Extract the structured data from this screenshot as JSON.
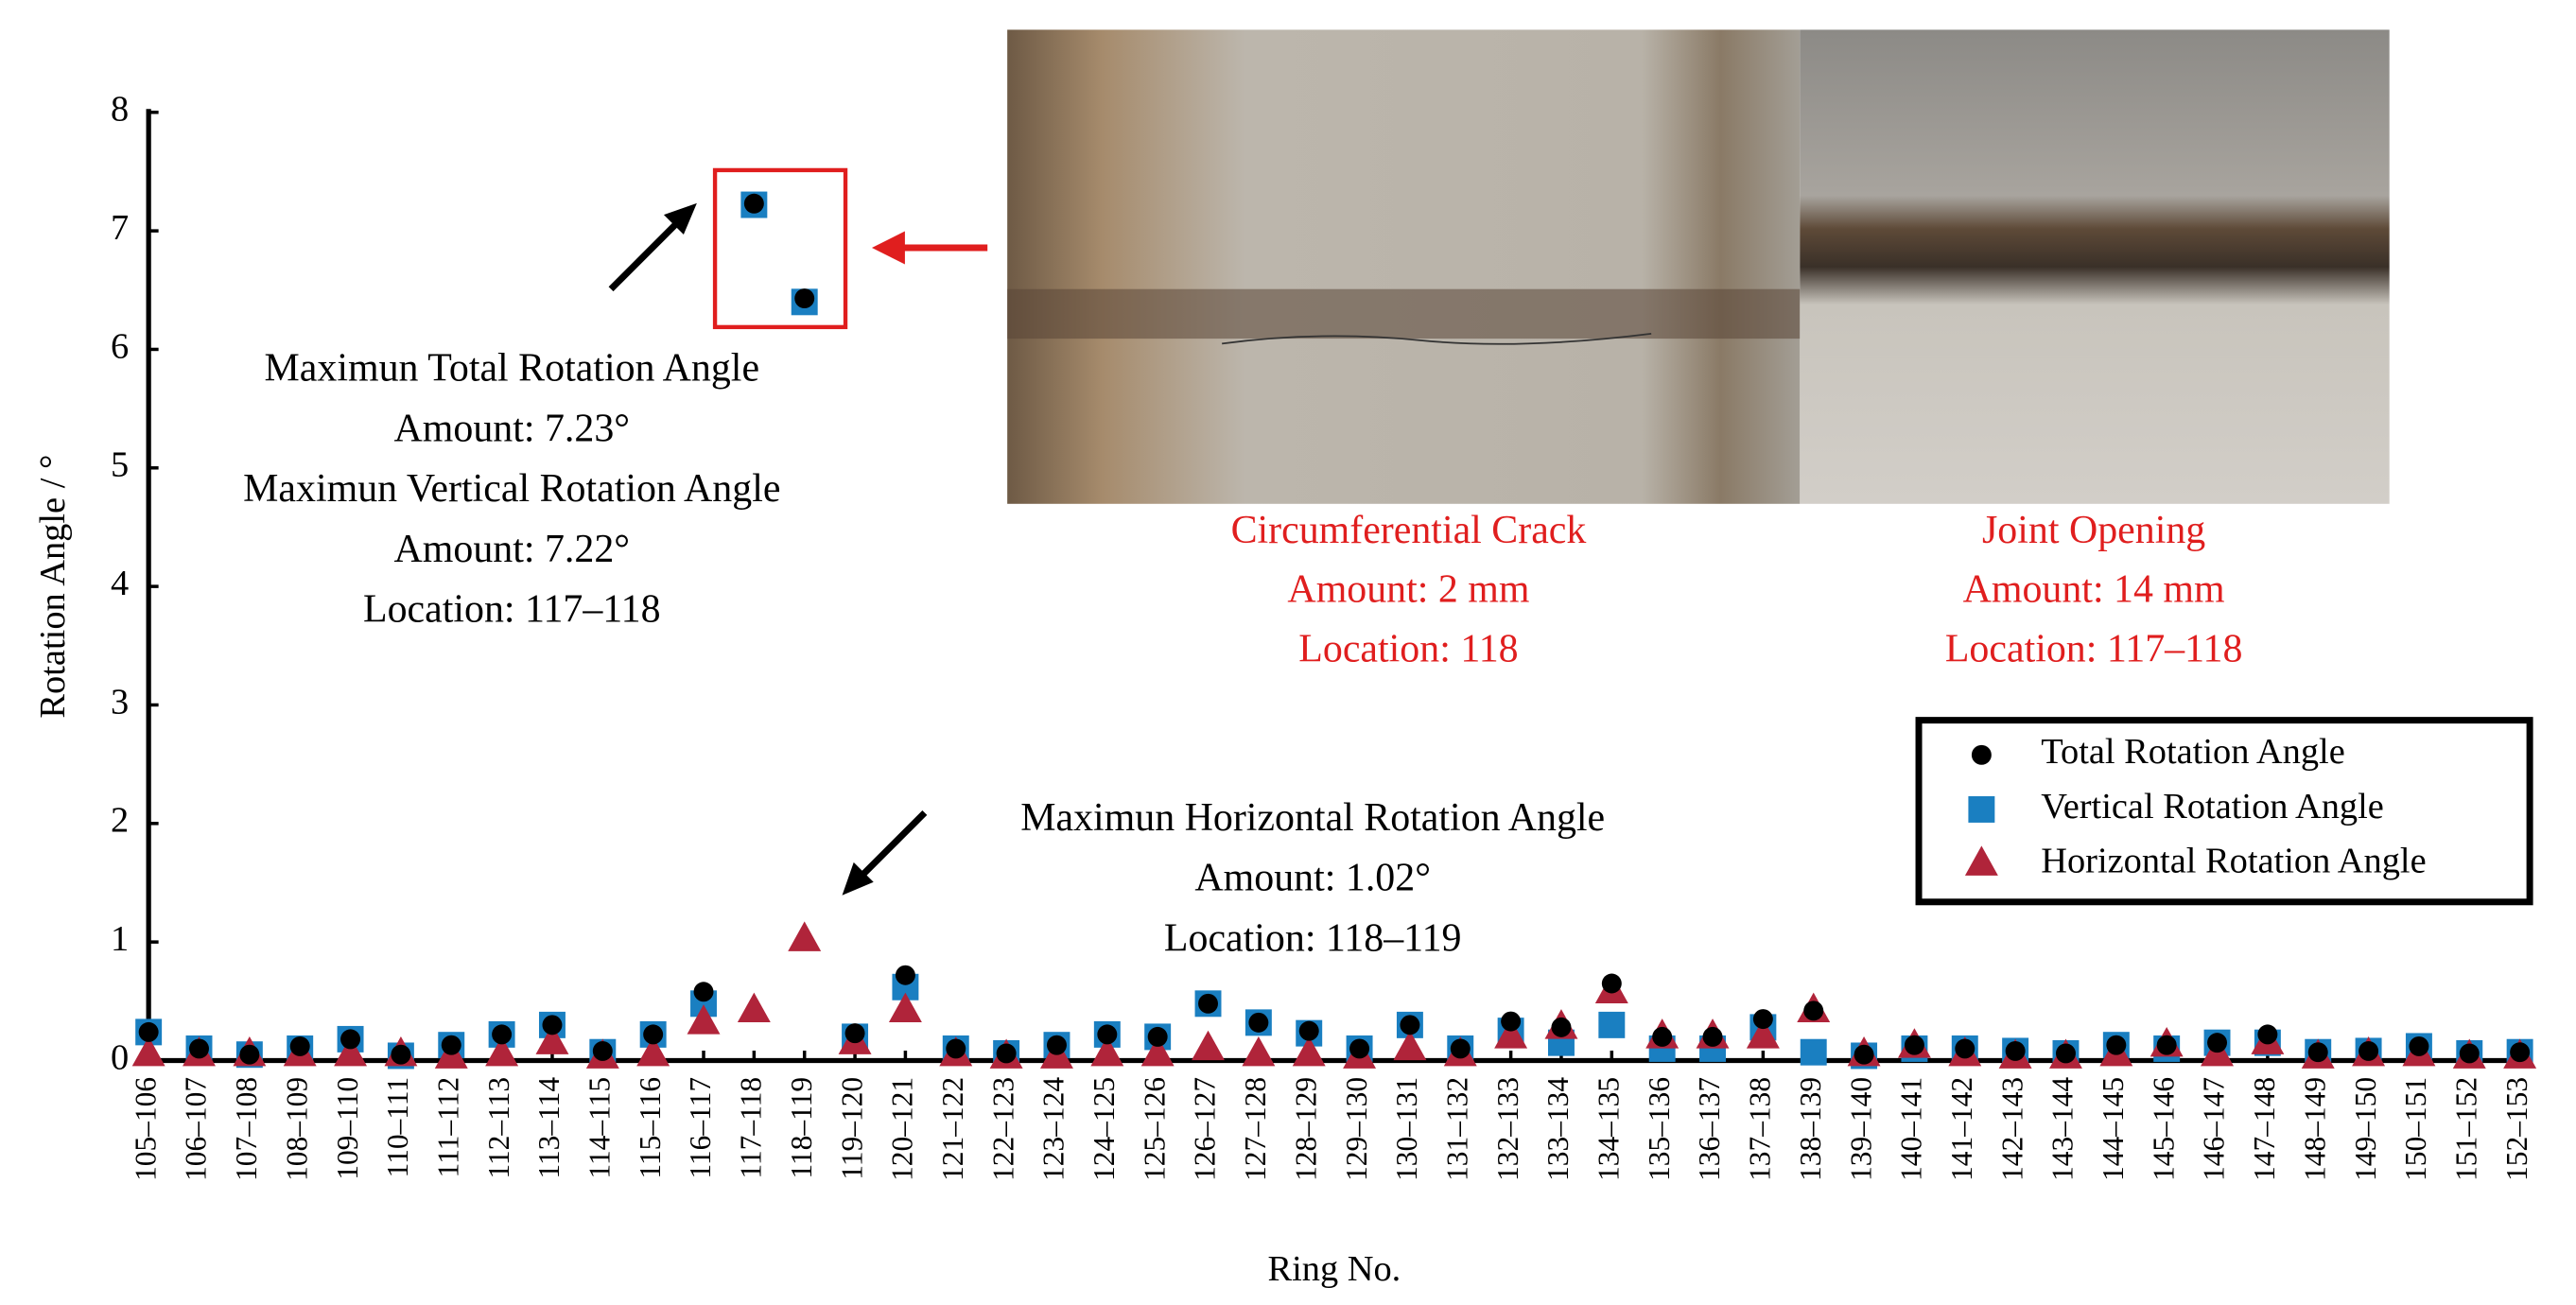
{
  "chart_data": {
    "type": "scatter",
    "y_label": "Rotation Angle / °",
    "x_label": "Ring No.",
    "categories": [
      "105–106",
      "106–107",
      "107–108",
      "108–109",
      "109–110",
      "110–111",
      "111–112",
      "112–113",
      "113–114",
      "114–115",
      "115–116",
      "116–117",
      "117–118",
      "118–119",
      "119–120",
      "120–121",
      "121–122",
      "122–123",
      "123–124",
      "124–125",
      "125–126",
      "126–127",
      "127–128",
      "128–129",
      "129–130",
      "130–131",
      "131–132",
      "132–133",
      "133–134",
      "134–135",
      "135–136",
      "136–137",
      "137–138",
      "138–139",
      "139–140",
      "140–141",
      "141–142",
      "142–143",
      "143–144",
      "144–145",
      "145–146",
      "146–147",
      "147–148",
      "148–149",
      "149–150",
      "150–151",
      "151–152",
      "152–153"
    ],
    "series": [
      {
        "name": "Total Rotation Angle",
        "color": "#000000",
        "marker": "circle",
        "values": [
          0.24,
          0.1,
          0.05,
          0.12,
          0.18,
          0.05,
          0.13,
          0.22,
          0.3,
          0.08,
          0.22,
          0.58,
          7.23,
          6.43,
          0.23,
          0.72,
          0.1,
          0.06,
          0.13,
          0.22,
          0.2,
          0.48,
          0.32,
          0.25,
          0.1,
          0.3,
          0.1,
          0.33,
          0.28,
          0.65,
          0.2,
          0.2,
          0.35,
          0.42,
          0.05,
          0.13,
          0.1,
          0.08,
          0.06,
          0.13,
          0.13,
          0.15,
          0.22,
          0.07,
          0.08,
          0.12,
          0.06,
          0.07
        ]
      },
      {
        "name": "Vertical Rotation Angle",
        "color": "#1a7fc1",
        "marker": "square",
        "values": [
          0.24,
          0.1,
          0.05,
          0.1,
          0.18,
          0.04,
          0.13,
          0.22,
          0.3,
          0.07,
          0.22,
          0.48,
          7.22,
          6.4,
          0.2,
          0.62,
          0.1,
          0.06,
          0.13,
          0.22,
          0.2,
          0.48,
          0.32,
          0.23,
          0.1,
          0.3,
          0.1,
          0.25,
          0.15,
          0.3,
          0.1,
          0.1,
          0.28,
          0.07,
          0.04,
          0.1,
          0.1,
          0.08,
          0.06,
          0.13,
          0.1,
          0.15,
          0.15,
          0.07,
          0.08,
          0.12,
          0.06,
          0.07
        ]
      },
      {
        "name": "Horizontal Rotation Angle",
        "color": "#b0243a",
        "marker": "triangle",
        "values": [
          0.05,
          0.05,
          0.05,
          0.05,
          0.05,
          0.05,
          0.03,
          0.05,
          0.15,
          0.03,
          0.05,
          0.32,
          0.42,
          1.02,
          0.15,
          0.42,
          0.05,
          0.03,
          0.03,
          0.05,
          0.05,
          0.1,
          0.05,
          0.05,
          0.03,
          0.1,
          0.05,
          0.2,
          0.28,
          0.58,
          0.2,
          0.2,
          0.2,
          0.42,
          0.05,
          0.12,
          0.05,
          0.03,
          0.03,
          0.05,
          0.13,
          0.05,
          0.15,
          0.03,
          0.05,
          0.05,
          0.03,
          0.03
        ]
      }
    ],
    "ylim": [
      0,
      8
    ],
    "yticks": [
      0,
      1,
      2,
      3,
      4,
      5,
      6,
      7,
      8
    ],
    "legend": "lower-right",
    "annotations": [
      {
        "lines": [
          "Maximun Total Rotation Angle",
          "Amount: 7.23°",
          "Maximun Vertical Rotation Angle",
          "Amount: 7.22°",
          "Location: 117–118"
        ],
        "color": "#000000"
      },
      {
        "lines": [
          "Maximun Horizontal Rotation Angle",
          "Amount: 1.02°",
          "Location: 118–119"
        ],
        "color": "#000000"
      },
      {
        "lines": [
          "Circumferential Crack",
          "Amount: 2 mm",
          "Location: 118"
        ],
        "color": "#e01e1e"
      },
      {
        "lines": [
          "Joint Opening",
          "Amount: 14 mm",
          "Location: 117–118"
        ],
        "color": "#e01e1e"
      }
    ]
  }
}
